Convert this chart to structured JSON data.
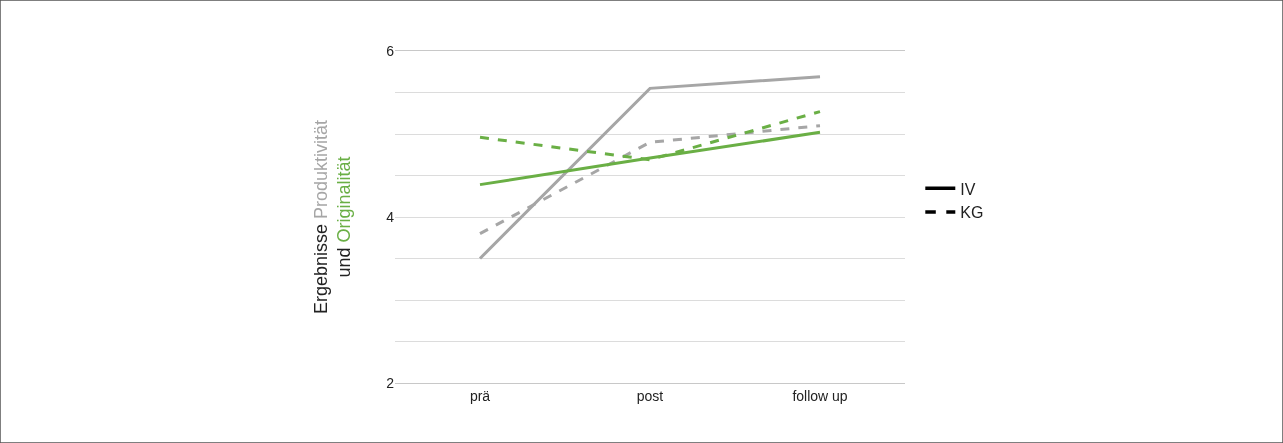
{
  "chart_data": {
    "type": "line",
    "ylabel": "Ergebnisse Produktivität und Originalität",
    "categories": [
      "prä",
      "post",
      "follow up"
    ],
    "series": [
      {
        "color": "#a6a6a6",
        "line_style": "solid",
        "values": [
          3.5,
          5.55,
          5.69
        ]
      },
      {
        "color": "#a6a6a6",
        "line_style": "dashed",
        "values": [
          3.8,
          4.9,
          5.1
        ]
      },
      {
        "color": "#6aaf45",
        "line_style": "solid",
        "values": [
          4.39,
          4.71,
          5.02
        ]
      },
      {
        "color": "#6aaf45",
        "line_style": "dashed",
        "values": [
          4.96,
          4.69,
          5.27
        ]
      }
    ],
    "annotations": [
      "IV",
      "KG"
    ],
    "ylim": [
      2,
      6
    ],
    "yticks": [
      2,
      {
        "value": 2.5,
        "label": null
      },
      {
        "value": 3,
        "label": null
      },
      {
        "value": 3.5,
        "label": null
      },
      4,
      {
        "value": 4.5,
        "label": null
      },
      {
        "value": 5,
        "label": null
      },
      {
        "value": 5.5,
        "label": null
      },
      6
    ],
    "grid": "y",
    "marker": "none"
  }
}
